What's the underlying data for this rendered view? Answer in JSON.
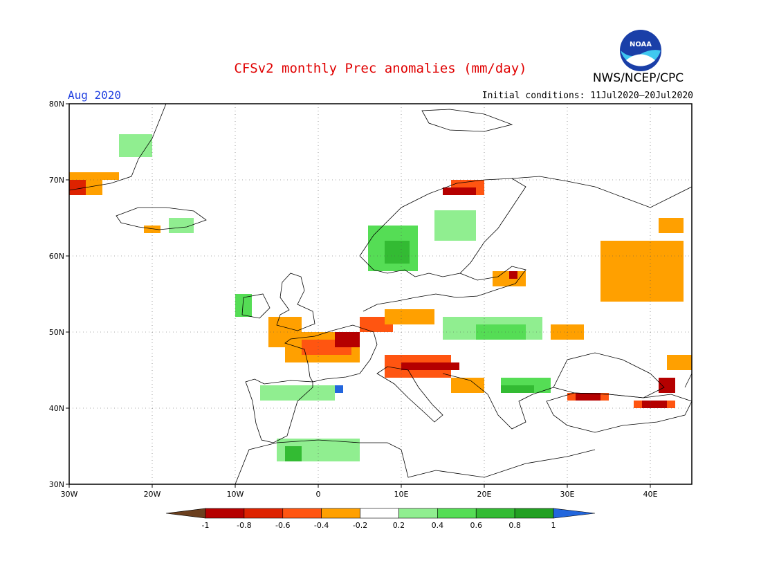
{
  "header": {
    "title": "CFSv2 monthly Prec anomalies (mm/day)",
    "month": "Aug 2020",
    "initial_conditions": "Initial conditions: 11Jul2020–20Jul2020",
    "agency": "NWS/NCEP/CPC",
    "logo_text": "NOAA"
  },
  "map": {
    "projection": "lat-lon",
    "lon_range": [
      -30,
      45
    ],
    "lat_range": [
      30,
      80
    ],
    "lon_ticks": [
      "30W",
      "20W",
      "10W",
      "0",
      "10E",
      "20E",
      "30E",
      "40E"
    ],
    "lat_ticks": [
      "30N",
      "40N",
      "50N",
      "60N",
      "70N",
      "80N"
    ],
    "grid": true
  },
  "legend": {
    "tick_labels": [
      "-1",
      "-0.8",
      "-0.6",
      "-0.4",
      "-0.2",
      "0.2",
      "0.4",
      "0.6",
      "0.8",
      "1"
    ],
    "bins": [
      {
        "range": "< -1",
        "color": "#6b3f1e"
      },
      {
        "range": "-1 to -0.8",
        "color": "#b50000"
      },
      {
        "range": "-0.8 to -0.6",
        "color": "#dd2200"
      },
      {
        "range": "-0.6 to -0.4",
        "color": "#ff5511"
      },
      {
        "range": "-0.4 to -0.2",
        "color": "#ffa000"
      },
      {
        "range": "-0.2 to 0.2",
        "color": "#ffffff"
      },
      {
        "range": "0.2 to 0.4",
        "color": "#90ee90"
      },
      {
        "range": "0.4 to 0.6",
        "color": "#55dd55"
      },
      {
        "range": "0.6 to 0.8",
        "color": "#33bb33"
      },
      {
        "range": "0.8 to 1",
        "color": "#22a022"
      },
      {
        "range": "> 1",
        "color": "#2266dd"
      }
    ]
  },
  "chart_data": {
    "type": "heatmap",
    "units": "mm/day",
    "cell_size_deg": 1,
    "regions": [
      {
        "lon": [
          -30,
          -26
        ],
        "lat": [
          68,
          71
        ],
        "value": -0.4
      },
      {
        "lon": [
          -30,
          -28
        ],
        "lat": [
          68,
          70
        ],
        "value": -0.7
      },
      {
        "lon": [
          -26,
          -24
        ],
        "lat": [
          70,
          71
        ],
        "value": -0.3
      },
      {
        "lon": [
          -24,
          -20
        ],
        "lat": [
          73,
          76
        ],
        "value": 0.3
      },
      {
        "lon": [
          -18,
          -15
        ],
        "lat": [
          63,
          65
        ],
        "value": 0.3
      },
      {
        "lon": [
          -21,
          -19
        ],
        "lat": [
          63,
          64
        ],
        "value": -0.3
      },
      {
        "lon": [
          -10,
          -8
        ],
        "lat": [
          52,
          55
        ],
        "value": 0.4
      },
      {
        "lon": [
          -6,
          -2
        ],
        "lat": [
          48,
          52
        ],
        "value": -0.3
      },
      {
        "lon": [
          -4,
          5
        ],
        "lat": [
          46,
          50
        ],
        "value": -0.4
      },
      {
        "lon": [
          -2,
          4
        ],
        "lat": [
          47,
          49
        ],
        "value": -0.6
      },
      {
        "lon": [
          2,
          5
        ],
        "lat": [
          48,
          50
        ],
        "value": -0.9
      },
      {
        "lon": [
          5,
          9
        ],
        "lat": [
          50,
          52
        ],
        "value": -0.5
      },
      {
        "lon": [
          8,
          14
        ],
        "lat": [
          51,
          53
        ],
        "value": -0.4
      },
      {
        "lon": [
          8,
          16
        ],
        "lat": [
          44,
          47
        ],
        "value": -0.5
      },
      {
        "lon": [
          10,
          17
        ],
        "lat": [
          45,
          46
        ],
        "value": -0.9
      },
      {
        "lon": [
          16,
          20
        ],
        "lat": [
          42,
          44
        ],
        "value": -0.4
      },
      {
        "lon": [
          1,
          3
        ],
        "lat": [
          42,
          43
        ],
        "value": 0.6
      },
      {
        "lon": [
          2,
          3
        ],
        "lat": [
          42,
          43
        ],
        "value": 1.1
      },
      {
        "lon": [
          -7,
          2
        ],
        "lat": [
          41,
          43
        ],
        "value": 0.3
      },
      {
        "lon": [
          -5,
          5
        ],
        "lat": [
          33,
          36
        ],
        "value": 0.3
      },
      {
        "lon": [
          -4,
          -2
        ],
        "lat": [
          33,
          35
        ],
        "value": 0.6
      },
      {
        "lon": [
          6,
          12
        ],
        "lat": [
          58,
          64
        ],
        "value": 0.4
      },
      {
        "lon": [
          8,
          11
        ],
        "lat": [
          59,
          62
        ],
        "value": 0.7
      },
      {
        "lon": [
          14,
          19
        ],
        "lat": [
          62,
          66
        ],
        "value": 0.3
      },
      {
        "lon": [
          16,
          20
        ],
        "lat": [
          68,
          70
        ],
        "value": -0.6
      },
      {
        "lon": [
          15,
          19
        ],
        "lat": [
          68,
          69
        ],
        "value": -0.9
      },
      {
        "lon": [
          21,
          25
        ],
        "lat": [
          56,
          58
        ],
        "value": -0.4
      },
      {
        "lon": [
          23,
          24
        ],
        "lat": [
          57,
          58
        ],
        "value": -0.9
      },
      {
        "lon": [
          15,
          27
        ],
        "lat": [
          49,
          52
        ],
        "value": 0.3
      },
      {
        "lon": [
          19,
          25
        ],
        "lat": [
          49,
          51
        ],
        "value": 0.5
      },
      {
        "lon": [
          22,
          28
        ],
        "lat": [
          42,
          44
        ],
        "value": 0.4
      },
      {
        "lon": [
          22,
          26
        ],
        "lat": [
          42,
          43
        ],
        "value": 0.6
      },
      {
        "lon": [
          30,
          35
        ],
        "lat": [
          41,
          42
        ],
        "value": -0.6
      },
      {
        "lon": [
          31,
          34
        ],
        "lat": [
          41,
          42
        ],
        "value": -0.9
      },
      {
        "lon": [
          38,
          43
        ],
        "lat": [
          40,
          41
        ],
        "value": -0.6
      },
      {
        "lon": [
          39,
          42
        ],
        "lat": [
          40,
          41
        ],
        "value": -0.9
      },
      {
        "lon": [
          41,
          43
        ],
        "lat": [
          42,
          44
        ],
        "value": -0.9
      },
      {
        "lon": [
          34,
          44
        ],
        "lat": [
          54,
          62
        ],
        "value": -0.4
      },
      {
        "lon": [
          41,
          44
        ],
        "lat": [
          63,
          65
        ],
        "value": -0.3
      },
      {
        "lon": [
          42,
          45
        ],
        "lat": [
          45,
          47
        ],
        "value": -0.3
      },
      {
        "lon": [
          28,
          32
        ],
        "lat": [
          49,
          51
        ],
        "value": -0.3
      }
    ]
  }
}
